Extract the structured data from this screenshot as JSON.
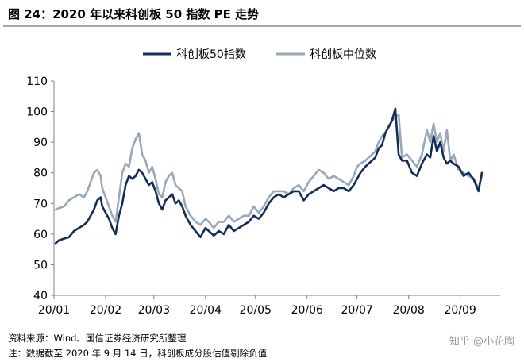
{
  "figure": {
    "title": "图 24：2020 年以来科创板 50 指数 PE 走势",
    "source": "资料来源：Wind、国信证券经济研究所整理",
    "note": "注：数据截至 2020 年 9 月 14 日，科创板成分股估值剔除负值",
    "watermark": "知乎 @小花陶"
  },
  "colors": {
    "series1": "#132d58",
    "series2": "#98a8b8",
    "axis": "#808080",
    "text": "#000000"
  },
  "chart_data": {
    "type": "line",
    "title": "",
    "xlabel": "",
    "ylabel": "",
    "ylim": [
      40,
      110
    ],
    "yticks": [
      40,
      50,
      60,
      70,
      80,
      90,
      100,
      110
    ],
    "xlim": [
      "2020-01-01",
      "2020-09-25"
    ],
    "xticks": [
      {
        "label": "20/01",
        "date": "2020-01-01"
      },
      {
        "label": "20/02",
        "date": "2020-02-01"
      },
      {
        "label": "20/03",
        "date": "2020-03-01"
      },
      {
        "label": "20/04",
        "date": "2020-04-01"
      },
      {
        "label": "20/05",
        "date": "2020-05-01"
      },
      {
        "label": "20/06",
        "date": "2020-06-01"
      },
      {
        "label": "20/07",
        "date": "2020-07-01"
      },
      {
        "label": "20/08",
        "date": "2020-08-01"
      },
      {
        "label": "20/09",
        "date": "2020-09-01"
      }
    ],
    "grid": false,
    "legend": "top-center",
    "series": [
      {
        "name": "科创板50指数",
        "x": [
          "2020-01-02",
          "2020-01-04",
          "2020-01-07",
          "2020-01-10",
          "2020-01-13",
          "2020-01-16",
          "2020-01-19",
          "2020-01-21",
          "2020-01-23",
          "2020-01-25",
          "2020-01-27",
          "2020-01-29",
          "2020-01-30",
          "2020-02-01",
          "2020-02-03",
          "2020-02-05",
          "2020-02-07",
          "2020-02-09",
          "2020-02-11",
          "2020-02-13",
          "2020-02-15",
          "2020-02-17",
          "2020-02-19",
          "2020-02-21",
          "2020-02-23",
          "2020-02-25",
          "2020-02-27",
          "2020-02-29",
          "2020-03-02",
          "2020-03-04",
          "2020-03-06",
          "2020-03-08",
          "2020-03-10",
          "2020-03-12",
          "2020-03-14",
          "2020-03-16",
          "2020-03-18",
          "2020-03-20",
          "2020-03-23",
          "2020-03-26",
          "2020-03-29",
          "2020-04-01",
          "2020-04-03",
          "2020-04-06",
          "2020-04-09",
          "2020-04-12",
          "2020-04-15",
          "2020-04-18",
          "2020-04-21",
          "2020-04-24",
          "2020-04-27",
          "2020-04-30",
          "2020-05-03",
          "2020-05-06",
          "2020-05-09",
          "2020-05-12",
          "2020-05-15",
          "2020-05-18",
          "2020-05-21",
          "2020-05-24",
          "2020-05-27",
          "2020-05-30",
          "2020-06-02",
          "2020-06-05",
          "2020-06-08",
          "2020-06-11",
          "2020-06-14",
          "2020-06-17",
          "2020-06-20",
          "2020-06-23",
          "2020-06-26",
          "2020-06-29",
          "2020-07-01",
          "2020-07-03",
          "2020-07-06",
          "2020-07-08",
          "2020-07-10",
          "2020-07-12",
          "2020-07-14",
          "2020-07-16",
          "2020-07-18",
          "2020-07-20",
          "2020-07-22",
          "2020-07-24",
          "2020-07-26",
          "2020-07-28",
          "2020-07-31",
          "2020-08-03",
          "2020-08-06",
          "2020-08-09",
          "2020-08-12",
          "2020-08-14",
          "2020-08-16",
          "2020-08-18",
          "2020-08-20",
          "2020-08-22",
          "2020-08-24",
          "2020-08-26",
          "2020-08-28",
          "2020-08-31",
          "2020-09-03",
          "2020-09-06",
          "2020-09-09",
          "2020-09-12",
          "2020-09-14"
        ],
        "values": [
          57,
          58,
          58.5,
          59,
          61,
          62,
          63,
          64,
          66,
          68,
          71,
          72,
          69,
          67,
          65,
          62,
          60,
          66,
          70,
          76,
          79,
          78,
          79,
          81,
          80,
          78,
          76,
          77,
          74,
          70,
          68,
          71,
          72,
          73,
          70,
          71,
          69,
          66,
          63,
          61,
          59,
          62,
          61,
          59.5,
          61,
          60,
          63,
          61,
          62,
          63,
          64,
          66,
          65,
          67,
          70,
          72,
          73,
          72,
          73,
          74,
          74,
          71,
          73,
          74,
          75,
          76,
          75,
          74,
          75,
          75,
          74,
          76,
          78,
          80,
          82,
          83,
          84,
          85,
          88,
          89,
          93,
          95,
          97,
          101,
          86,
          84,
          84,
          80,
          79,
          83,
          86,
          85,
          92,
          87,
          90,
          85,
          83,
          84,
          83,
          82,
          79,
          80,
          78,
          74,
          80
        ]
      },
      {
        "name": "科创板中位数",
        "x": [
          "2020-01-02",
          "2020-01-04",
          "2020-01-07",
          "2020-01-10",
          "2020-01-13",
          "2020-01-16",
          "2020-01-19",
          "2020-01-21",
          "2020-01-23",
          "2020-01-25",
          "2020-01-27",
          "2020-01-29",
          "2020-01-30",
          "2020-02-01",
          "2020-02-03",
          "2020-02-05",
          "2020-02-07",
          "2020-02-09",
          "2020-02-11",
          "2020-02-13",
          "2020-02-15",
          "2020-02-17",
          "2020-02-19",
          "2020-02-21",
          "2020-02-23",
          "2020-02-25",
          "2020-02-27",
          "2020-02-29",
          "2020-03-02",
          "2020-03-04",
          "2020-03-06",
          "2020-03-08",
          "2020-03-10",
          "2020-03-12",
          "2020-03-14",
          "2020-03-16",
          "2020-03-18",
          "2020-03-20",
          "2020-03-23",
          "2020-03-26",
          "2020-03-29",
          "2020-04-01",
          "2020-04-03",
          "2020-04-06",
          "2020-04-09",
          "2020-04-12",
          "2020-04-15",
          "2020-04-18",
          "2020-04-21",
          "2020-04-24",
          "2020-04-27",
          "2020-04-30",
          "2020-05-03",
          "2020-05-06",
          "2020-05-09",
          "2020-05-12",
          "2020-05-15",
          "2020-05-18",
          "2020-05-21",
          "2020-05-24",
          "2020-05-27",
          "2020-05-30",
          "2020-06-02",
          "2020-06-05",
          "2020-06-08",
          "2020-06-11",
          "2020-06-14",
          "2020-06-17",
          "2020-06-20",
          "2020-06-23",
          "2020-06-26",
          "2020-06-29",
          "2020-07-01",
          "2020-07-03",
          "2020-07-06",
          "2020-07-08",
          "2020-07-10",
          "2020-07-12",
          "2020-07-14",
          "2020-07-16",
          "2020-07-18",
          "2020-07-20",
          "2020-07-22",
          "2020-07-24",
          "2020-07-26",
          "2020-07-28",
          "2020-07-31",
          "2020-08-03",
          "2020-08-06",
          "2020-08-09",
          "2020-08-12",
          "2020-08-14",
          "2020-08-16",
          "2020-08-18",
          "2020-08-20",
          "2020-08-22",
          "2020-08-24",
          "2020-08-26",
          "2020-08-28",
          "2020-08-31",
          "2020-09-03",
          "2020-09-06",
          "2020-09-09",
          "2020-09-12",
          "2020-09-14"
        ],
        "values": [
          68,
          68.5,
          69,
          71,
          72,
          73,
          72,
          74,
          77,
          80,
          81,
          79,
          75,
          72,
          69,
          66,
          64,
          72,
          80,
          83,
          82,
          88,
          91,
          93,
          86,
          84,
          80,
          82,
          78,
          73,
          72,
          77,
          79,
          80,
          76,
          75,
          74,
          69,
          66,
          64,
          63,
          65,
          64,
          62,
          64,
          64,
          66,
          64,
          65,
          66,
          66,
          69,
          67,
          69,
          72,
          74,
          74,
          74,
          73,
          75,
          76,
          74,
          77,
          79,
          81,
          80,
          78,
          79,
          78,
          77,
          76,
          79,
          82,
          83,
          84,
          85,
          86,
          87,
          90,
          92,
          93,
          95,
          97,
          98,
          99,
          85,
          86,
          84,
          82,
          86,
          94,
          90,
          96,
          90,
          93,
          87,
          94,
          84,
          86,
          81,
          80,
          79,
          78,
          75,
          79
        ]
      }
    ]
  }
}
